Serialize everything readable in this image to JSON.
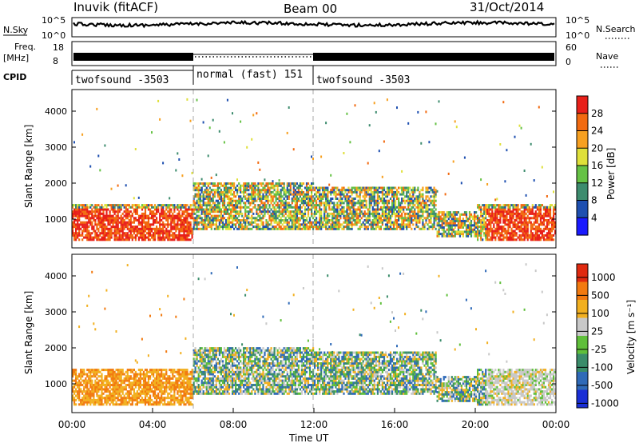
{
  "header": {
    "station": "Inuvik (fitACF)",
    "beam": "Beam 00",
    "date": "31/Oct/2014"
  },
  "status_panels": {
    "nsky_label": "N.Sky",
    "nsky_ticks": [
      "10^5",
      "10^0"
    ],
    "nsearch_label": "N.Search",
    "nsearch_ticks": [
      "10^5",
      "10^0"
    ],
    "freq_label": "Freq.",
    "freq_unit": "[MHz]",
    "freq_ticks": [
      "18",
      "8"
    ],
    "nave_label": "Nave",
    "nave_ticks": [
      "60",
      "0"
    ],
    "cpid_label": "CPID",
    "cpid_segments": [
      {
        "label": "twofsound -3503",
        "start_hour": 0,
        "end_hour": 6
      },
      {
        "label": "normal (fast) 151",
        "start_hour": 6,
        "end_hour": 12
      },
      {
        "label": "twofsound -3503",
        "start_hour": 12,
        "end_hour": 24
      }
    ]
  },
  "chart_data": [
    {
      "type": "heatmap",
      "title": "",
      "ylabel": "Slant Range [km]",
      "xlabel": "",
      "ylim": [
        200,
        4600
      ],
      "xlim_hours": [
        0,
        24
      ],
      "yticks": [
        1000,
        2000,
        3000,
        4000
      ],
      "colorbar": {
        "label": "Power [dB]",
        "ticks": [
          4,
          8,
          12,
          16,
          20,
          24,
          28
        ],
        "range": [
          0,
          32
        ],
        "colors": [
          "#1a1aff",
          "#1e4fb0",
          "#3d8c6e",
          "#66c245",
          "#dfe03a",
          "#f7a020",
          "#f26a10",
          "#e8201a"
        ]
      }
    },
    {
      "type": "heatmap",
      "title": "",
      "ylabel": "Slant Range [km]",
      "xlabel": "Time UT",
      "ylim": [
        200,
        4600
      ],
      "xlim_hours": [
        0,
        24
      ],
      "yticks": [
        1000,
        2000,
        3000,
        4000
      ],
      "xticks": [
        "00:00",
        "04:00",
        "08:00",
        "12:00",
        "16:00",
        "20:00",
        "00:00"
      ],
      "colorbar": {
        "label": "Velocity [m s⁻¹]",
        "ticks": [
          "1000",
          "500",
          "100",
          "25",
          "-25",
          "-100",
          "-500",
          "-1000"
        ],
        "colors": [
          "#1a2fd6",
          "#2f6ab8",
          "#3a8c6a",
          "#5fbf3a",
          "#c8c8c8",
          "#f2b020",
          "#f27a10",
          "#e02a10"
        ]
      }
    }
  ]
}
